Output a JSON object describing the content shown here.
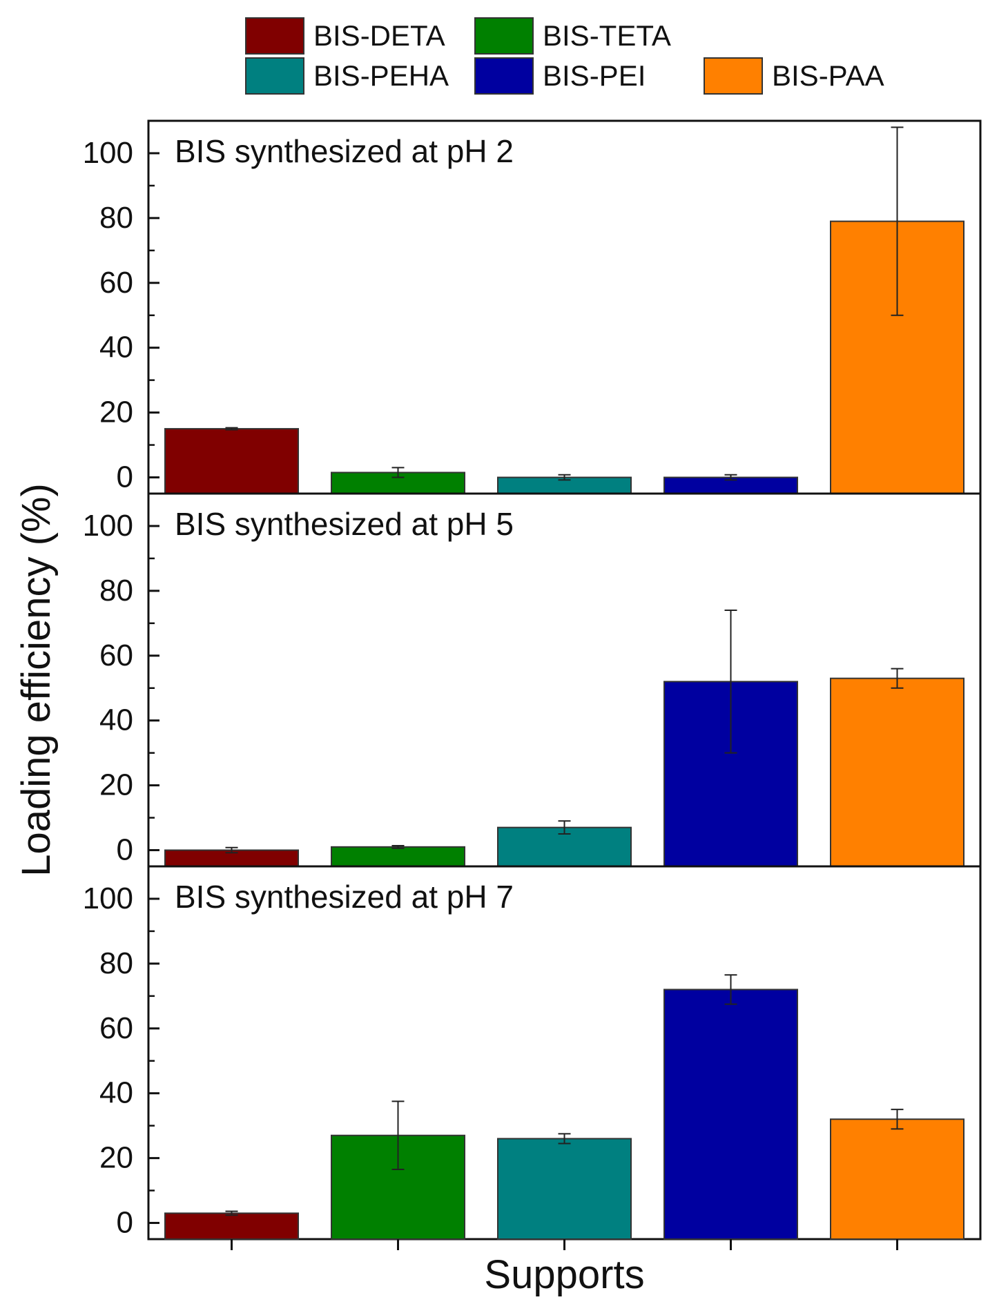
{
  "chart_data": {
    "type": "bar",
    "layout": "stacked-panels",
    "categories": [
      "BIS-DETA",
      "BIS-TETA",
      "BIS-PEHA",
      "BIS-PEI",
      "BIS-PAA"
    ],
    "colors": [
      "#800000",
      "#008000",
      "#008080",
      "#0000A0",
      "#FF8000"
    ],
    "xlabel": "Supports",
    "ylabel": "Loading efficiency (%)",
    "ylim": [
      -5,
      110
    ],
    "yticks": [
      0,
      20,
      40,
      60,
      80,
      100
    ],
    "legend": {
      "placement": "top-center",
      "entries": [
        "BIS-DETA",
        "BIS-TETA",
        "BIS-PEHA",
        "BIS-PEI",
        "BIS-PAA"
      ]
    },
    "panels": [
      {
        "title": "BIS synthesized at pH 2",
        "values": [
          15,
          1.5,
          0,
          0,
          79
        ],
        "errors": [
          0.3,
          1.5,
          0.8,
          0.8,
          29
        ]
      },
      {
        "title": "BIS synthesized at pH 5",
        "values": [
          0,
          1,
          7,
          52,
          53
        ],
        "errors": [
          0.8,
          0.4,
          2,
          22,
          3
        ]
      },
      {
        "title": "BIS synthesized at pH 7",
        "values": [
          3,
          27,
          26,
          72,
          32
        ],
        "errors": [
          0.6,
          10.5,
          1.5,
          4.5,
          3
        ]
      }
    ]
  }
}
